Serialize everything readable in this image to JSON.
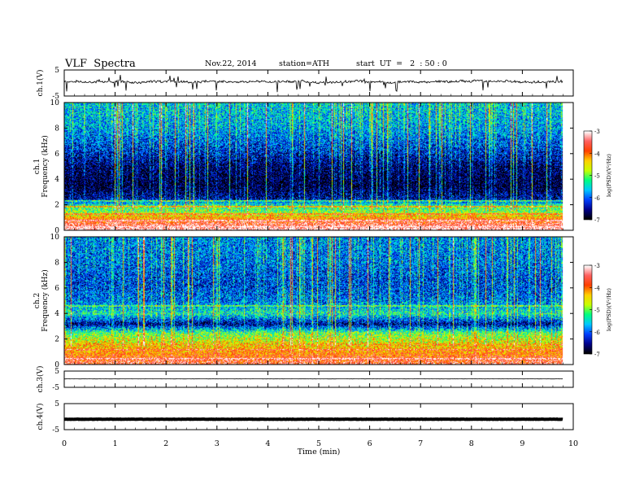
{
  "header": {
    "title": "VLF  Spectra",
    "date": "Nov.22, 2014",
    "station": "station=ATH",
    "start_time": "start  UT  =   2  : 50 : 0"
  },
  "chart_data": [
    {
      "id": "ch1-waveform",
      "type": "line",
      "ylabel": "ch.1(V)",
      "ylim": [
        -5,
        5
      ],
      "yticks": [
        "5",
        "-5"
      ],
      "description_values": {
        "baseline_V": 0.5,
        "amplitude_V": 0.8
      },
      "xlim": [
        0,
        10
      ]
    },
    {
      "id": "ch1-spectrogram",
      "type": "heatmap",
      "ylabel": "Frequency (kHz)",
      "channel_label": "ch.1",
      "ylim": [
        0,
        10
      ],
      "yticks": [
        "0",
        "2",
        "4",
        "6",
        "8",
        "10"
      ],
      "xlim": [
        0,
        10
      ],
      "data_end_min": 9.8,
      "colorbar": {
        "label": "log(PSD)(V²/Hz)",
        "range": [
          -7,
          -3
        ],
        "ticks": [
          "-3",
          "-4",
          "-5",
          "-6",
          "-7"
        ]
      },
      "profile": [
        {
          "f_khz": 0.2,
          "logpsd": -3.2
        },
        {
          "f_khz": 0.6,
          "logpsd": -3.6
        },
        {
          "f_khz": 1.0,
          "logpsd": -4.2
        },
        {
          "f_khz": 1.5,
          "logpsd": -5.0
        },
        {
          "f_khz": 2.0,
          "logpsd": -5.4
        },
        {
          "f_khz": 2.5,
          "logpsd": -6.5
        },
        {
          "f_khz": 3.5,
          "logpsd": -6.9
        },
        {
          "f_khz": 5.0,
          "logpsd": -6.7
        },
        {
          "f_khz": 6.5,
          "logpsd": -6.2
        },
        {
          "f_khz": 8.0,
          "logpsd": -5.8
        },
        {
          "f_khz": 10.0,
          "logpsd": -5.6
        }
      ],
      "bands_khz": [
        {
          "f": 0.3,
          "logpsd": -3.1
        },
        {
          "f": 0.5,
          "logpsd": -4.5
        },
        {
          "f": 0.8,
          "logpsd": -3.4
        },
        {
          "f": 1.3,
          "logpsd": -4.0
        },
        {
          "f": 1.9,
          "logpsd": -4.6
        },
        {
          "f": 2.3,
          "logpsd": -5.2
        }
      ]
    },
    {
      "id": "ch2-spectrogram",
      "type": "heatmap",
      "ylabel": "Frequency (kHz)",
      "channel_label": "ch.2",
      "ylim": [
        0,
        10
      ],
      "yticks": [
        "0",
        "2",
        "4",
        "6",
        "8",
        "10"
      ],
      "xlim": [
        0,
        10
      ],
      "data_end_min": 9.8,
      "colorbar": {
        "label": "log(PSD)(V²/Hz)",
        "range": [
          -7,
          -3
        ],
        "ticks": [
          "-3",
          "-4",
          "-5",
          "-6",
          "-7"
        ]
      },
      "profile": [
        {
          "f_khz": 0.2,
          "logpsd": -3.6
        },
        {
          "f_khz": 0.8,
          "logpsd": -4.0
        },
        {
          "f_khz": 1.5,
          "logpsd": -4.4
        },
        {
          "f_khz": 2.5,
          "logpsd": -5.1
        },
        {
          "f_khz": 3.2,
          "logpsd": -6.6
        },
        {
          "f_khz": 4.0,
          "logpsd": -5.4
        },
        {
          "f_khz": 5.0,
          "logpsd": -6.0
        },
        {
          "f_khz": 6.5,
          "logpsd": -6.2
        },
        {
          "f_khz": 8.0,
          "logpsd": -6.0
        },
        {
          "f_khz": 10.0,
          "logpsd": -5.9
        }
      ],
      "bands_khz": [
        {
          "f": 0.5,
          "logpsd": -3.2
        },
        {
          "f": 1.2,
          "logpsd": -3.8
        },
        {
          "f": 1.6,
          "logpsd": -4.2
        },
        {
          "f": 2.0,
          "logpsd": -4.6
        },
        {
          "f": 4.6,
          "logpsd": -5.3
        }
      ]
    },
    {
      "id": "ch3-waveform",
      "type": "line",
      "ylabel": "ch.3(V)",
      "ylim": [
        -5,
        5
      ],
      "yticks": [
        "5",
        "-5"
      ],
      "description_values": {
        "baseline_V": 0.2,
        "amplitude_V": 0.1
      },
      "xlim": [
        0,
        10
      ]
    },
    {
      "id": "ch4-waveform",
      "type": "line",
      "ylabel": "ch.4(V)",
      "ylim": [
        -5,
        5
      ],
      "yticks": [
        "5",
        "-5"
      ],
      "description_values": {
        "baseline_V": -1.0,
        "amplitude_V": 0.15
      },
      "xlim": [
        0,
        10
      ]
    }
  ],
  "x_axis": {
    "label": "Time  (min)",
    "ticks": [
      "0",
      "1",
      "2",
      "3",
      "4",
      "5",
      "6",
      "7",
      "8",
      "9",
      "10"
    ]
  },
  "colors": {
    "frame": "#000000",
    "colormap": [
      "#000000",
      "#00008b",
      "#0040ff",
      "#00c8ff",
      "#00ff80",
      "#c8ff00",
      "#ffd000",
      "#ff4000",
      "#ff6060",
      "#ffffff"
    ]
  }
}
